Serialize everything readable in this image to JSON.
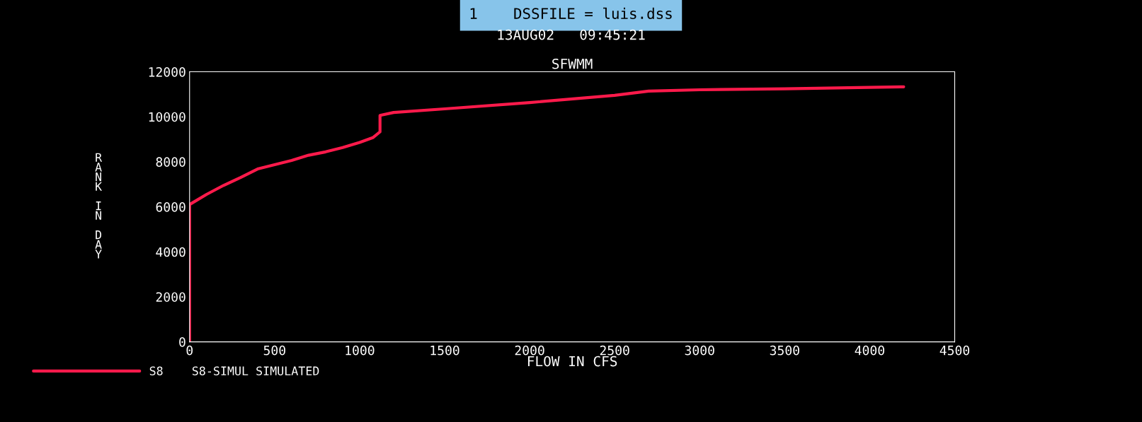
{
  "chart_data": {
    "type": "line",
    "title": "SFWMM",
    "xlabel": "FLOW IN CFS",
    "ylabel": "RANK IN DAY",
    "annotations": [
      "1    DSSFILE = luis.dss",
      "13AUG02   09:45:21"
    ],
    "xlim": [
      0,
      4500
    ],
    "xticks": [
      0,
      500,
      1000,
      1500,
      2000,
      2500,
      3000,
      3500,
      4000,
      4500
    ],
    "ylim": [
      0,
      12000
    ],
    "yticks": [
      0,
      2000,
      4000,
      6000,
      8000,
      10000,
      12000
    ],
    "grid": false,
    "legend": "bottom left",
    "marker": "none",
    "line_style": "solid",
    "series": [
      {
        "name": "S8    S8-SIMUL SIMULATED",
        "color": "#ff1a4b",
        "x": [
          0,
          0,
          100,
          200,
          300,
          400,
          500,
          600,
          700,
          800,
          900,
          1000,
          1080,
          1120,
          1120,
          1200,
          1500,
          2000,
          2500,
          2700,
          3000,
          3500,
          4200
        ],
        "values": [
          0,
          6100,
          6550,
          6950,
          7300,
          7680,
          7870,
          8060,
          8290,
          8440,
          8630,
          8860,
          9080,
          9330,
          10060,
          10190,
          10350,
          10630,
          10950,
          11140,
          11200,
          11240,
          11330
        ]
      }
    ]
  }
}
